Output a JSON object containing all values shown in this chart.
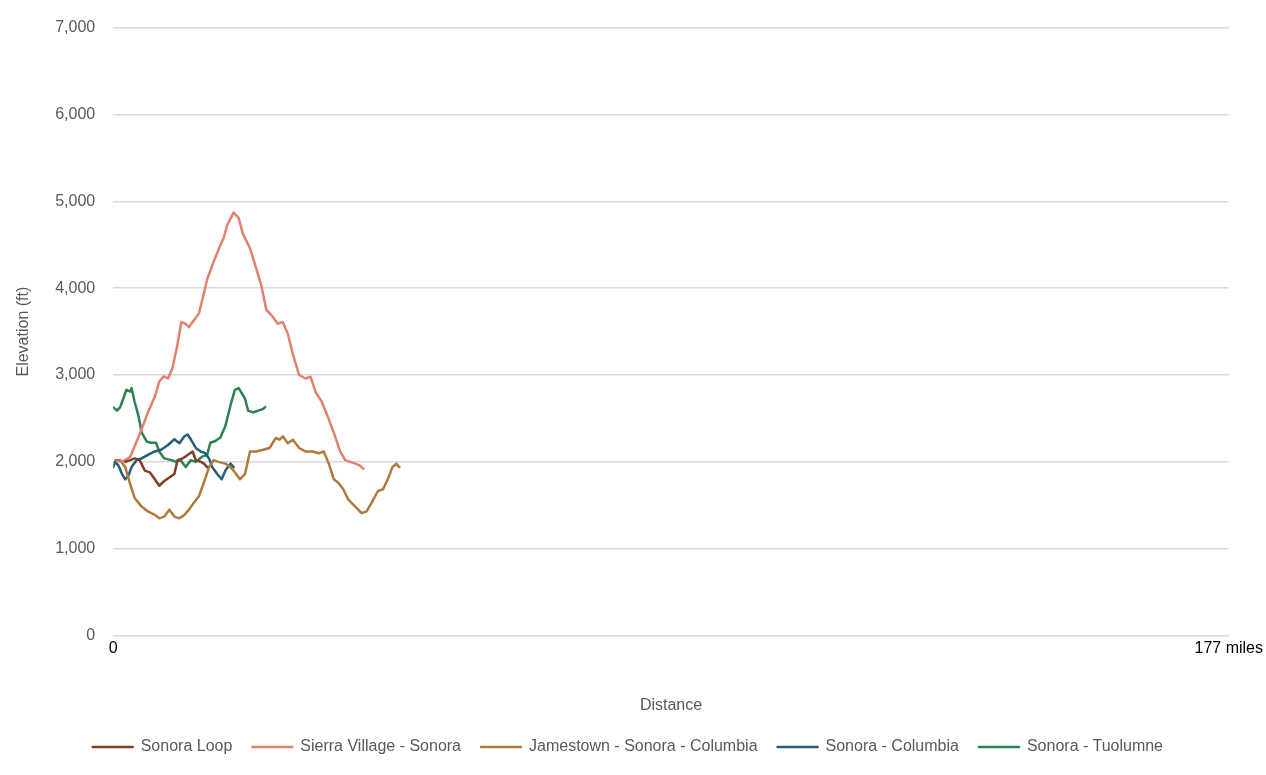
{
  "chart_data": {
    "type": "line",
    "xlabel": "Distance",
    "ylabel": "Elevation (ft)",
    "xlim": [
      0,
      177
    ],
    "xticks": [
      0,
      {
        "value": 177,
        "label": "177 miles"
      }
    ],
    "ylim": [
      0,
      7000
    ],
    "yticks": [
      0,
      {
        "value": 1000,
        "label": "1,000"
      },
      {
        "value": 2000,
        "label": "2,000"
      },
      {
        "value": 3000,
        "label": "3,000"
      },
      {
        "value": 4000,
        "label": "4,000"
      },
      {
        "value": 5000,
        "label": "5,000"
      },
      {
        "value": 6000,
        "label": "6,000"
      },
      {
        "value": 7000,
        "label": "7,000"
      }
    ],
    "grid": "y",
    "legend": "bottom",
    "marker": "none",
    "line_style": "solid",
    "series": [
      {
        "name": "Sonora Loop",
        "color": "#843c28",
        "x": [
          1.9,
          2.7,
          3.4,
          4.2,
          5.0,
          5.8,
          6.6,
          7.3,
          8.1,
          8.9,
          9.7,
          10.2,
          11.0,
          11.8,
          12.6,
          13.1,
          13.9,
          14.4,
          14.9
        ],
        "values": [
          2000,
          2020,
          2040,
          2020,
          1900,
          1880,
          1800,
          1725,
          1780,
          1820,
          1860,
          2020,
          2040,
          2080,
          2120,
          2020,
          2000,
          1980,
          1940
        ]
      },
      {
        "name": "Sierra Village - Sonora",
        "color": "#e0826e",
        "x": [
          1.1,
          1.9,
          2.7,
          3.4,
          4.5,
          5.5,
          6.6,
          7.3,
          8.0,
          8.7,
          9.4,
          10.2,
          10.8,
          11.5,
          12.0,
          12.8,
          13.6,
          14.4,
          14.9,
          15.9,
          17.0,
          17.5,
          18.1,
          19.1,
          19.9,
          20.6,
          21.7,
          22.7,
          23.5,
          24.3,
          25.1,
          26.1,
          26.9,
          27.7,
          28.5,
          29.5,
          30.5,
          31.3,
          32.1,
          33.1,
          34.2,
          35.2,
          36.0,
          36.8,
          37.6,
          38.4,
          39.1,
          39.7
        ],
        "values": [
          2000,
          2020,
          2060,
          2180,
          2375,
          2570,
          2750,
          2925,
          2985,
          2960,
          3080,
          3355,
          3610,
          3590,
          3550,
          3630,
          3710,
          3945,
          4100,
          4300,
          4495,
          4575,
          4730,
          4870,
          4810,
          4620,
          4460,
          4225,
          4030,
          3750,
          3690,
          3590,
          3610,
          3475,
          3240,
          3000,
          2960,
          2980,
          2805,
          2690,
          2490,
          2295,
          2120,
          2020,
          2000,
          1980,
          1960,
          1920
        ]
      },
      {
        "name": "Jamestown - Sonora - Columbia",
        "color": "#b07a3a",
        "x": [
          0.3,
          1.1,
          1.9,
          2.7,
          3.4,
          4.5,
          5.5,
          6.6,
          7.3,
          8.1,
          8.9,
          9.7,
          10.5,
          11.3,
          12.0,
          12.8,
          13.6,
          14.4,
          15.2,
          15.9,
          16.7,
          17.8,
          18.6,
          19.3,
          20.1,
          20.9,
          21.7,
          22.7,
          23.8,
          24.8,
          25.8,
          26.4,
          26.9,
          27.7,
          28.5,
          29.5,
          30.5,
          31.6,
          32.6,
          33.4,
          34.2,
          35.0,
          35.7,
          36.5,
          37.3,
          38.4,
          39.4,
          40.2,
          41.0,
          42.0,
          42.8,
          43.6,
          44.3,
          44.9,
          45.4
        ],
        "values": [
          2020,
          2020,
          1940,
          1740,
          1585,
          1485,
          1430,
          1390,
          1350,
          1370,
          1450,
          1370,
          1350,
          1390,
          1450,
          1530,
          1605,
          1765,
          1940,
          2020,
          2000,
          1980,
          1940,
          1880,
          1800,
          1860,
          2120,
          2120,
          2140,
          2160,
          2275,
          2255,
          2295,
          2215,
          2255,
          2160,
          2120,
          2120,
          2100,
          2120,
          1980,
          1800,
          1760,
          1685,
          1565,
          1485,
          1410,
          1430,
          1530,
          1665,
          1685,
          1805,
          1940,
          1980,
          1940
        ]
      },
      {
        "name": "Sonora - Columbia",
        "color": "#255e78",
        "x": [
          0,
          0.3,
          0.8,
          1.4,
          1.9,
          2.4,
          2.9,
          3.7,
          4.5,
          5.5,
          6.6,
          7.6,
          8.7,
          9.7,
          10.5,
          11.3,
          11.8,
          12.3,
          13.1,
          13.9,
          14.6,
          15.2,
          15.7,
          16.5,
          17.2,
          17.8,
          18.6,
          19.1
        ],
        "values": [
          1940,
          2000,
          1960,
          1860,
          1800,
          1840,
          1940,
          2020,
          2040,
          2080,
          2120,
          2140,
          2195,
          2260,
          2215,
          2295,
          2315,
          2260,
          2160,
          2120,
          2100,
          2040,
          1940,
          1860,
          1800,
          1900,
          1980,
          1940
        ]
      },
      {
        "name": "Sonora - Tuolumne",
        "color": "#2e8150",
        "x": [
          0,
          0.6,
          1.1,
          1.6,
          2.1,
          2.7,
          2.9,
          3.4,
          4.0,
          4.5,
          5.3,
          6.0,
          6.8,
          7.3,
          8.1,
          9.2,
          10.0,
          10.7,
          11.5,
          12.3,
          13.1,
          14.1,
          14.9,
          15.4,
          16.2,
          17.0,
          17.8,
          18.6,
          19.3,
          19.9,
          20.4,
          20.9,
          21.4,
          22.2,
          23.0,
          23.8,
          24.1
        ],
        "values": [
          2630,
          2590,
          2630,
          2730,
          2830,
          2810,
          2850,
          2690,
          2530,
          2340,
          2235,
          2220,
          2220,
          2120,
          2040,
          2020,
          2000,
          2020,
          1940,
          2020,
          2000,
          2060,
          2080,
          2220,
          2240,
          2280,
          2415,
          2650,
          2830,
          2850,
          2790,
          2730,
          2590,
          2570,
          2590,
          2610,
          2630
        ]
      }
    ]
  }
}
